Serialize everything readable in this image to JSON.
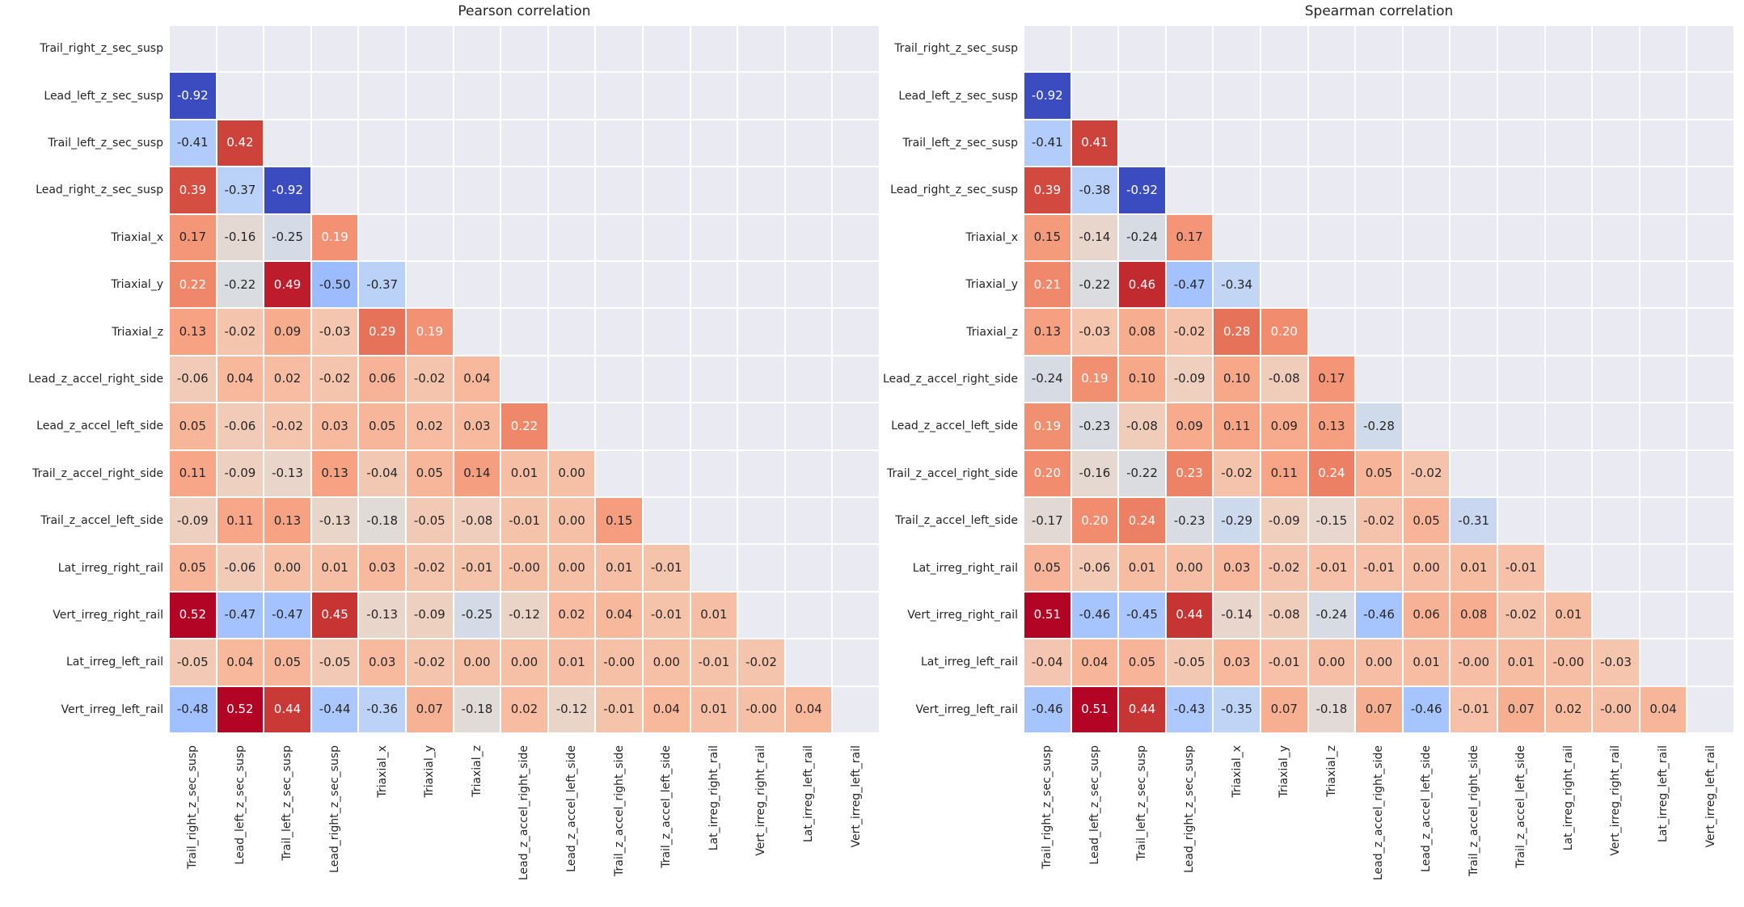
{
  "styles": {
    "masked_bg": "#eaeaf2",
    "grid_line": "#ffffff",
    "text_dark": "#262626",
    "text_light": "#ffffff",
    "colormap_min": "#3b4cc0",
    "colormap_mid": "#dddddd",
    "colormap_max": "#b40426"
  },
  "chart_data": [
    {
      "type": "heatmap",
      "title": "Pearson correlation",
      "triangle": "lower",
      "colormap": "coolwarm",
      "labels": [
        "Trail_right_z_sec_susp",
        "Lead_left_z_sec_susp",
        "Trail_left_z_sec_susp",
        "Lead_right_z_sec_susp",
        "Triaxial_x",
        "Triaxial_y",
        "Triaxial_z",
        "Lead_z_accel_right_side",
        "Lead_z_accel_left_side",
        "Trail_z_accel_right_side",
        "Trail_z_accel_left_side",
        "Lat_irreg_right_rail",
        "Vert_irreg_right_rail",
        "Lat_irreg_left_rail",
        "Vert_irreg_left_rail"
      ],
      "rows": [
        [],
        [
          "-0.92"
        ],
        [
          "-0.41",
          "0.42"
        ],
        [
          "0.39",
          "-0.37",
          "-0.92"
        ],
        [
          "0.17",
          "-0.16",
          "-0.25",
          "0.19"
        ],
        [
          "0.22",
          "-0.22",
          "0.49",
          "-0.50",
          "-0.37"
        ],
        [
          "0.13",
          "-0.02",
          "0.09",
          "-0.03",
          "0.29",
          "0.19"
        ],
        [
          "-0.06",
          "0.04",
          "0.02",
          "-0.02",
          "0.06",
          "-0.02",
          "0.04"
        ],
        [
          "0.05",
          "-0.06",
          "-0.02",
          "0.03",
          "0.05",
          "0.02",
          "0.03",
          "0.22"
        ],
        [
          "0.11",
          "-0.09",
          "-0.13",
          "0.13",
          "-0.04",
          "0.05",
          "0.14",
          "0.01",
          "0.00"
        ],
        [
          "-0.09",
          "0.11",
          "0.13",
          "-0.13",
          "-0.18",
          "-0.05",
          "-0.08",
          "-0.01",
          "0.00",
          "0.15"
        ],
        [
          "0.05",
          "-0.06",
          "0.00",
          "0.01",
          "0.03",
          "-0.02",
          "-0.01",
          "-0.00",
          "0.00",
          "0.01",
          "-0.01"
        ],
        [
          "0.52",
          "-0.47",
          "-0.47",
          "0.45",
          "-0.13",
          "-0.09",
          "-0.25",
          "-0.12",
          "0.02",
          "0.04",
          "-0.01",
          "0.01"
        ],
        [
          "-0.05",
          "0.04",
          "0.05",
          "-0.05",
          "0.03",
          "-0.02",
          "0.00",
          "0.00",
          "0.01",
          "-0.00",
          "0.00",
          "-0.01",
          "-0.02"
        ],
        [
          "-0.48",
          "0.52",
          "0.44",
          "-0.44",
          "-0.36",
          "0.07",
          "-0.18",
          "0.02",
          "-0.12",
          "-0.01",
          "0.04",
          "0.01",
          "-0.00",
          "0.04"
        ]
      ]
    },
    {
      "type": "heatmap",
      "title": "Spearman correlation",
      "triangle": "lower",
      "colormap": "coolwarm",
      "labels": [
        "Trail_right_z_sec_susp",
        "Lead_left_z_sec_susp",
        "Trail_left_z_sec_susp",
        "Lead_right_z_sec_susp",
        "Triaxial_x",
        "Triaxial_y",
        "Triaxial_z",
        "Lead_z_accel_right_side",
        "Lead_z_accel_left_side",
        "Trail_z_accel_right_side",
        "Trail_z_accel_left_side",
        "Lat_irreg_right_rail",
        "Vert_irreg_right_rail",
        "Lat_irreg_left_rail",
        "Vert_irreg_left_rail"
      ],
      "rows": [
        [],
        [
          "-0.92"
        ],
        [
          "-0.41",
          "0.41"
        ],
        [
          "0.39",
          "-0.38",
          "-0.92"
        ],
        [
          "0.15",
          "-0.14",
          "-0.24",
          "0.17"
        ],
        [
          "0.21",
          "-0.22",
          "0.46",
          "-0.47",
          "-0.34"
        ],
        [
          "0.13",
          "-0.03",
          "0.08",
          "-0.02",
          "0.28",
          "0.20"
        ],
        [
          "-0.24",
          "0.19",
          "0.10",
          "-0.09",
          "0.10",
          "-0.08",
          "0.17"
        ],
        [
          "0.19",
          "-0.23",
          "-0.08",
          "0.09",
          "0.11",
          "0.09",
          "0.13",
          "-0.28"
        ],
        [
          "0.20",
          "-0.16",
          "-0.22",
          "0.23",
          "-0.02",
          "0.11",
          "0.24",
          "0.05",
          "-0.02"
        ],
        [
          "-0.17",
          "0.20",
          "0.24",
          "-0.23",
          "-0.29",
          "-0.09",
          "-0.15",
          "-0.02",
          "0.05",
          "-0.31"
        ],
        [
          "0.05",
          "-0.06",
          "0.01",
          "0.00",
          "0.03",
          "-0.02",
          "-0.01",
          "-0.01",
          "0.00",
          "0.01",
          "-0.01"
        ],
        [
          "0.51",
          "-0.46",
          "-0.45",
          "0.44",
          "-0.14",
          "-0.08",
          "-0.24",
          "-0.46",
          "0.06",
          "0.08",
          "-0.02",
          "0.01"
        ],
        [
          "-0.04",
          "0.04",
          "0.05",
          "-0.05",
          "0.03",
          "-0.01",
          "0.00",
          "0.00",
          "0.01",
          "-0.00",
          "0.01",
          "-0.00",
          "-0.03"
        ],
        [
          "-0.46",
          "0.51",
          "0.44",
          "-0.43",
          "-0.35",
          "0.07",
          "-0.18",
          "0.07",
          "-0.46",
          "-0.01",
          "0.07",
          "0.02",
          "-0.00",
          "0.04"
        ]
      ]
    }
  ]
}
